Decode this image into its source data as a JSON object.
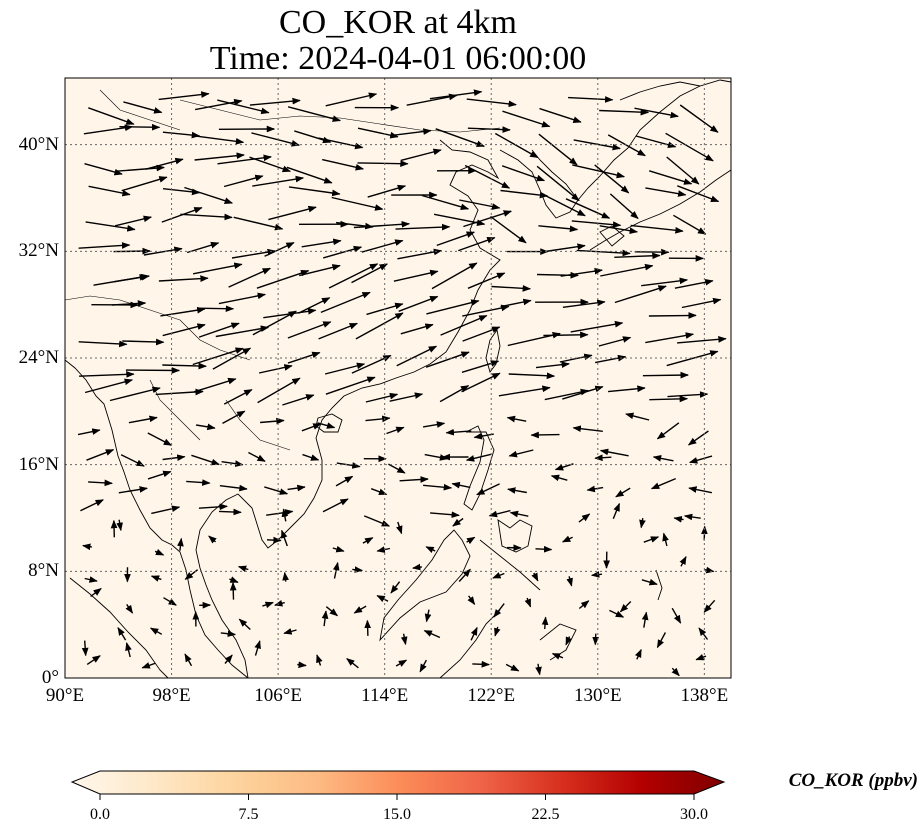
{
  "title": {
    "line1": "CO_KOR at 4km",
    "line2": "Time: 2024-04-01 06:00:00"
  },
  "map": {
    "extent": {
      "lon_min": 90,
      "lon_max": 140,
      "lat_min": 0,
      "lat_max": 45
    },
    "background_color": "#fff5e9",
    "coastline_color": "#000000",
    "gridline_style": "dotted",
    "y_ticks": [
      {
        "label": "40°N",
        "lat": 40
      },
      {
        "label": "32°N",
        "lat": 32
      },
      {
        "label": "24°N",
        "lat": 24
      },
      {
        "label": "16°N",
        "lat": 16
      },
      {
        "label": "8°N",
        "lat": 8
      },
      {
        "label": "0°",
        "lat": 0
      }
    ],
    "x_ticks": [
      {
        "label": "90°E",
        "lon": 90
      },
      {
        "label": "98°E",
        "lon": 98
      },
      {
        "label": "106°E",
        "lon": 106
      },
      {
        "label": "114°E",
        "lon": 114
      },
      {
        "label": "122°E",
        "lon": 122
      },
      {
        "label": "130°E",
        "lon": 130
      },
      {
        "label": "138°E",
        "lon": 138
      }
    ],
    "wind_vectors": "quiver field, strongest flow west-southwesterly across southern China and westerly/northwesterly over Korea and Japan; weak winds over the South China Sea and maritime Southeast Asia"
  },
  "colorbar": {
    "label": "CO_KOR (ppbv)",
    "colormap": "OrRd",
    "min": 0.0,
    "max": 30.0,
    "extend": "both",
    "stops": [
      "#fff7ec",
      "#fee8c8",
      "#fdd49e",
      "#fdbb84",
      "#fc8d59",
      "#ef6548",
      "#d7301f",
      "#b30000",
      "#7f0000"
    ],
    "ticks": [
      "0.0",
      "7.5",
      "15.0",
      "22.5",
      "30.0"
    ]
  }
}
